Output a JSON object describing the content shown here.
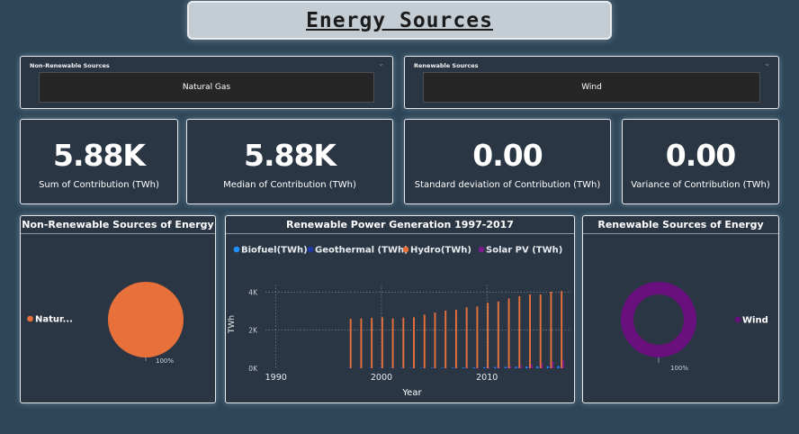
{
  "page_title": "Energy Sources",
  "slicers": [
    {
      "label": "Non-Renewable Sources",
      "value": "Natural Gas"
    },
    {
      "label": "Renewable Sources",
      "value": "Wind"
    }
  ],
  "kpis": [
    {
      "value": "5.88K",
      "label": "Sum of Contribution (TWh)"
    },
    {
      "value": "5.88K",
      "label": "Median of Contribution (TWh)"
    },
    {
      "value": "0.00",
      "label": "Standard deviation of Contribution (TWh)"
    },
    {
      "value": "0.00",
      "label": "Variance of Contribution (TWh)"
    }
  ],
  "icons": {
    "chevron": "chevron-down-icon",
    "legend_marker": "circle-icon"
  },
  "colors": {
    "natural_gas": "#e8703a",
    "wind": "#6a0f7e",
    "biofuel": "#1e90ff",
    "geothermal": "#1f3aa8",
    "hydro": "#e8703a",
    "solar": "#7a1c8c"
  },
  "chart_data": [
    {
      "type": "pie",
      "title": "Non-Renewable Sources of Energy",
      "labels": [
        "Natural Gas"
      ],
      "legend_labels": [
        "Natur..."
      ],
      "values": [
        100
      ],
      "data_labels": [
        "100%"
      ],
      "legend": "left"
    },
    {
      "type": "bar",
      "title": "Renewable Power Generation 1997-2017",
      "xlabel": "Year",
      "ylabel": "TWh",
      "x": [
        1997,
        1998,
        1999,
        2000,
        2001,
        2002,
        2003,
        2004,
        2005,
        2006,
        2007,
        2008,
        2009,
        2010,
        2011,
        2012,
        2013,
        2014,
        2015,
        2016,
        2017
      ],
      "xlim": [
        1989,
        2018
      ],
      "ylim": [
        0,
        4400
      ],
      "x_ticks": [
        1990,
        2000,
        2010
      ],
      "x_tick_labels": [
        "1990",
        "2000",
        "2010"
      ],
      "y_ticks": [
        0,
        2000,
        4000
      ],
      "y_tick_labels": [
        "0K",
        "2K",
        "4K"
      ],
      "legend": "top",
      "series": [
        {
          "name": "Biofuel(TWh)",
          "values": [
            3,
            4,
            5,
            6,
            8,
            11,
            14,
            17,
            22,
            28,
            34,
            40,
            46,
            55,
            62,
            72,
            82,
            93,
            100,
            107,
            117
          ]
        },
        {
          "name": "Geothermal (TWh)",
          "values": [
            44,
            46,
            48,
            50,
            52,
            53,
            56,
            57,
            58,
            61,
            63,
            65,
            67,
            69,
            71,
            72,
            73,
            75,
            79,
            82,
            85
          ]
        },
        {
          "name": "Hydro(TWh)",
          "values": [
            2600,
            2620,
            2650,
            2680,
            2620,
            2660,
            2680,
            2820,
            2920,
            3030,
            3070,
            3200,
            3250,
            3440,
            3510,
            3670,
            3790,
            3880,
            3880,
            4020,
            4060
          ]
        },
        {
          "name": "Solar PV (TWh)",
          "values": [
            0,
            0,
            0,
            1,
            1,
            1,
            1,
            1,
            2,
            3,
            4,
            12,
            20,
            32,
            64,
            100,
            140,
            200,
            260,
            330,
            440
          ]
        }
      ]
    },
    {
      "type": "pie",
      "title": "Renewable Sources of Energy",
      "labels": [
        "Wind"
      ],
      "values": [
        100
      ],
      "data_labels": [
        "100%"
      ],
      "legend": "right"
    }
  ]
}
